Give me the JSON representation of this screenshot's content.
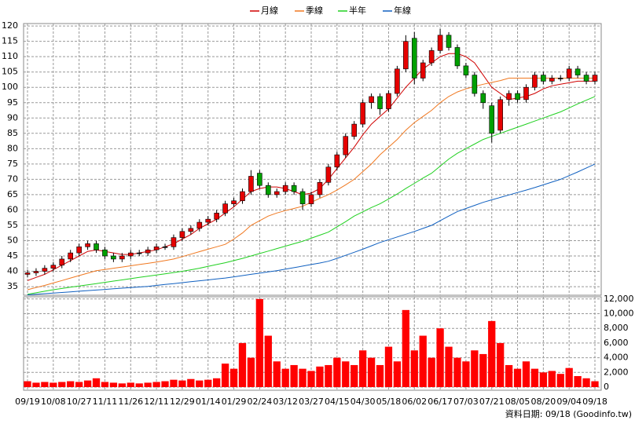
{
  "chart_data": {
    "type": "candlestick",
    "categories": [
      "09/19",
      null,
      null,
      "10/08",
      null,
      null,
      "10/27",
      null,
      null,
      "11/11",
      null,
      null,
      "11/26",
      null,
      null,
      "12/11",
      null,
      null,
      "12/29",
      null,
      null,
      "01/14",
      null,
      null,
      "01/29",
      null,
      null,
      "02/24",
      null,
      null,
      "03/12",
      null,
      null,
      "03/27",
      null,
      null,
      "04/15",
      null,
      null,
      "04/30",
      null,
      null,
      "05/18",
      null,
      null,
      "06/02",
      null,
      null,
      "06/17",
      null,
      null,
      "07/03",
      null,
      null,
      "07/21",
      null,
      null,
      "08/05",
      null,
      null,
      "08/20",
      null,
      null,
      "09/04",
      null,
      null,
      "09/18"
    ],
    "open": [
      39,
      39.5,
      40,
      41,
      42,
      44,
      46,
      48,
      49,
      47,
      45,
      44,
      45,
      46,
      46,
      47,
      48,
      48,
      51,
      53,
      54,
      56,
      57,
      59,
      62,
      63,
      66,
      72,
      68,
      65,
      66,
      68,
      66,
      62,
      65,
      69,
      74,
      78,
      84,
      88,
      95,
      97,
      93,
      98,
      106,
      116,
      103,
      108,
      112,
      117,
      113,
      107,
      104,
      98,
      94,
      86,
      96,
      98,
      96,
      100,
      104,
      102,
      103,
      103,
      106,
      104,
      102
    ],
    "high": [
      40.5,
      41,
      42,
      43,
      45,
      47,
      49,
      50,
      50,
      48,
      46,
      46,
      47,
      47,
      48,
      49,
      49,
      52,
      54,
      55,
      57,
      58,
      60,
      63,
      64,
      67,
      73,
      73,
      69,
      67,
      69,
      69,
      67,
      66,
      70,
      75,
      79,
      85,
      89,
      96,
      98,
      98,
      99,
      107,
      117,
      118,
      109,
      113,
      119,
      118,
      114,
      108,
      105,
      99,
      95,
      97,
      99,
      99,
      101,
      105,
      105,
      104,
      104,
      107,
      107,
      105,
      105
    ],
    "low": [
      38,
      38.5,
      39,
      40,
      41,
      43,
      45,
      47,
      46,
      44,
      43,
      43,
      44,
      45,
      45,
      46,
      47,
      47,
      50,
      52,
      53,
      55,
      56,
      58,
      61,
      62,
      65,
      67,
      64,
      64,
      65,
      65,
      60,
      61,
      64,
      68,
      73,
      77,
      83,
      87,
      93,
      91,
      92,
      97,
      105,
      101,
      102,
      107,
      111,
      112,
      106,
      103,
      97,
      93,
      82,
      85,
      94,
      95,
      95,
      99,
      101,
      101,
      102,
      102,
      103,
      101,
      101
    ],
    "close": [
      39.5,
      40,
      41,
      42,
      44,
      46,
      48,
      49,
      47,
      45,
      44,
      45,
      46,
      46,
      47,
      48,
      48,
      51,
      53,
      54,
      56,
      57,
      59,
      62,
      63,
      66,
      71,
      68,
      65,
      66,
      68,
      66,
      62,
      65,
      69,
      74,
      78,
      84,
      88,
      95,
      97,
      93,
      98,
      106,
      115,
      103,
      108,
      112,
      117,
      113,
      107,
      104,
      98,
      95,
      85,
      96,
      98,
      96,
      100,
      104,
      102,
      103,
      103,
      106,
      104,
      102,
      104
    ],
    "up_color": "#e60000",
    "down_color": "#00a000",
    "flat_color": "#000000",
    "series": [
      {
        "name": "月線",
        "color": "#d00000",
        "values": [
          37,
          38,
          39,
          40.5,
          42,
          43.5,
          45,
          46.5,
          47,
          46.5,
          46,
          45.5,
          45.5,
          46,
          46.5,
          47,
          48,
          49,
          50.5,
          52,
          54,
          55.5,
          57,
          59,
          61,
          63.5,
          66,
          67,
          67.5,
          67.5,
          67,
          66,
          65,
          65.5,
          67,
          70,
          73.5,
          77,
          80.5,
          84.5,
          88,
          90.5,
          93,
          96.5,
          100,
          103,
          106,
          108,
          110,
          111,
          111,
          110,
          108,
          104,
          100,
          98,
          96,
          96.5,
          97,
          98,
          99.5,
          100.5,
          101,
          101.5,
          102,
          102,
          102
        ]
      },
      {
        "name": "季線",
        "color": "#f07820",
        "values": [
          34,
          34.7,
          35.4,
          36.2,
          37,
          37.8,
          38.6,
          39.4,
          40.2,
          40.6,
          41,
          41.4,
          41.8,
          42.2,
          42.6,
          43,
          43.5,
          44,
          44.8,
          45.6,
          46.4,
          47.2,
          48,
          48.8,
          50.5,
          52.5,
          55,
          56.5,
          58,
          59,
          59.8,
          60.5,
          61.2,
          62.5,
          63.8,
          65,
          66.5,
          68.2,
          70,
          72.5,
          75,
          78,
          80.5,
          83,
          86,
          88.5,
          90.5,
          92.5,
          95,
          97,
          98.5,
          99.5,
          100.3,
          101,
          101.6,
          102.2,
          103,
          103,
          103,
          103,
          103,
          103,
          103,
          103,
          103,
          103,
          103
        ]
      },
      {
        "name": "半年",
        "color": "#20d020",
        "values": [
          32.5,
          33,
          33.5,
          34,
          34.4,
          34.8,
          35.2,
          35.6,
          36,
          36.4,
          36.8,
          37.2,
          37.6,
          38,
          38.4,
          38.8,
          39.2,
          39.6,
          40,
          40.5,
          41,
          41.6,
          42.2,
          42.8,
          43.5,
          44.2,
          45,
          45.8,
          46.6,
          47.4,
          48.2,
          49,
          49.8,
          50.8,
          51.8,
          52.8,
          54.5,
          56.2,
          58,
          59.4,
          60.8,
          62,
          63.6,
          65.2,
          67,
          68.7,
          70.4,
          72,
          74.3,
          76.6,
          78.5,
          80,
          81.5,
          83,
          84,
          85,
          86,
          87,
          88,
          89,
          90,
          91,
          92,
          93.3,
          94.6,
          95.8,
          97
        ]
      },
      {
        "name": "年線",
        "color": "#1060c0",
        "values": [
          32.3,
          32.5,
          32.7,
          32.9,
          33.1,
          33.3,
          33.5,
          33.7,
          33.9,
          34.1,
          34.3,
          34.5,
          34.7,
          34.9,
          35.1,
          35.4,
          35.7,
          36,
          36.3,
          36.6,
          36.9,
          37.2,
          37.5,
          37.8,
          38.2,
          38.6,
          39,
          39.4,
          39.8,
          40.2,
          40.7,
          41.2,
          41.7,
          42.2,
          42.7,
          43.3,
          44.2,
          45.2,
          46.2,
          47.2,
          48.3,
          49.4,
          50.3,
          51.2,
          52.1,
          53,
          54,
          55,
          56.5,
          58,
          59.5,
          60.5,
          61.5,
          62.5,
          63.3,
          64.1,
          64.9,
          65.7,
          66.5,
          67.3,
          68.2,
          69.1,
          70,
          71.2,
          72.4,
          73.7,
          75
        ]
      }
    ],
    "ylim": [
      32.2,
      120.8
    ],
    "yticks": [
      35,
      40,
      45,
      50,
      55,
      60,
      65,
      70,
      75,
      80,
      85,
      90,
      95,
      100,
      105,
      110,
      115,
      120
    ],
    "grid": true,
    "legend": "top",
    "volume": {
      "color": "#ff0000",
      "values": [
        800,
        600,
        700,
        600,
        700,
        800,
        700,
        900,
        1200,
        700,
        600,
        500,
        600,
        500,
        600,
        700,
        800,
        1000,
        900,
        1100,
        900,
        1000,
        1200,
        3200,
        2500,
        6000,
        4000,
        12000,
        7000,
        3500,
        2500,
        3000,
        2500,
        2200,
        2800,
        3000,
        4000,
        3500,
        3000,
        5000,
        4000,
        3000,
        5500,
        3500,
        10500,
        5000,
        7000,
        4000,
        8000,
        5500,
        4000,
        3500,
        5000,
        4500,
        9000,
        6000,
        3000,
        2500,
        3500,
        2500,
        2000,
        2200,
        1800,
        2600,
        1500,
        1200,
        800
      ],
      "ylim": [
        0,
        12300
      ],
      "yticks": [
        0,
        {
          "value": 2000,
          "label": "2,000"
        },
        {
          "value": 4000,
          "label": "4,000"
        },
        {
          "value": 6000,
          "label": "6,000"
        },
        {
          "value": 8000,
          "label": "8,000"
        },
        {
          "value": 10000,
          "label": "10,000"
        },
        {
          "value": 12000,
          "label": "12,000"
        }
      ]
    },
    "footnote": "資料日期: 09/18 (Goodinfo.tw)"
  }
}
